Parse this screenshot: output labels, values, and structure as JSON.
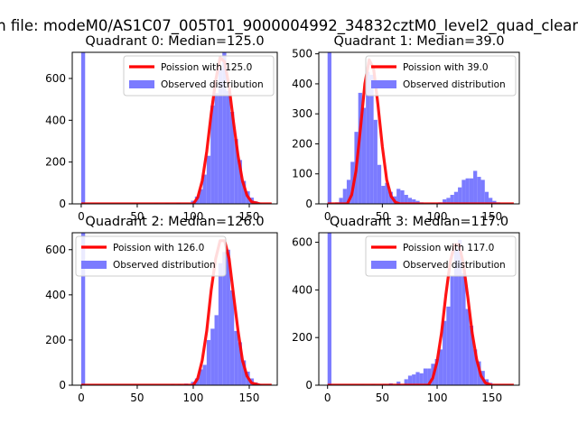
{
  "figure_title": "n file: modeM0/AS1C07_005T01_9000004992_34832cztM0_level2_quad_clean",
  "colors": {
    "hist": "#7b7bff",
    "fit": "#ff0000",
    "background": "#ffffff"
  },
  "chart_data": [
    {
      "type": "bar",
      "title": "Quadrant 0: Median=125.0",
      "xlim": [
        -8,
        175
      ],
      "ylim": [
        0,
        725
      ],
      "xticks": [
        0,
        50,
        100,
        150
      ],
      "yticks": [
        0,
        200,
        400,
        600
      ],
      "legend": [
        "Poission with 125.0",
        "Observed distribution"
      ],
      "legend_position": "upper-right",
      "median": 125,
      "bin_width": 3.5,
      "bins": [
        [
          0,
          725
        ],
        [
          45,
          3
        ],
        [
          65,
          3
        ],
        [
          75,
          4
        ],
        [
          85,
          5
        ],
        [
          98,
          15
        ],
        [
          101.5,
          35
        ],
        [
          105,
          70
        ],
        [
          108.5,
          140
        ],
        [
          112,
          230
        ],
        [
          115.5,
          470
        ],
        [
          119,
          530
        ],
        [
          122.5,
          650
        ],
        [
          126,
          725
        ],
        [
          129.5,
          540
        ],
        [
          133,
          440
        ],
        [
          136.5,
          310
        ],
        [
          140,
          210
        ],
        [
          143.5,
          110
        ],
        [
          147,
          60
        ],
        [
          150.5,
          30
        ],
        [
          154,
          12
        ],
        [
          157.5,
          5
        ],
        [
          161,
          2
        ]
      ],
      "fit": [
        [
          0,
          0
        ],
        [
          100,
          0
        ],
        [
          104,
          30
        ],
        [
          108,
          110
        ],
        [
          112,
          250
        ],
        [
          116,
          430
        ],
        [
          120,
          590
        ],
        [
          124,
          700
        ],
        [
          128,
          680
        ],
        [
          132,
          560
        ],
        [
          136,
          390
        ],
        [
          140,
          230
        ],
        [
          144,
          110
        ],
        [
          148,
          40
        ],
        [
          152,
          10
        ],
        [
          160,
          0
        ],
        [
          170,
          0
        ]
      ]
    },
    {
      "type": "bar",
      "title": "Quadrant 1: Median=39.0",
      "xlim": [
        -8,
        175
      ],
      "ylim": [
        0,
        505
      ],
      "xticks": [
        0,
        50,
        100,
        150
      ],
      "yticks": [
        0,
        100,
        200,
        300,
        400,
        500
      ],
      "legend": [
        "Poission with 39.0",
        "Observed distribution"
      ],
      "legend_position": "upper-right",
      "median": 39,
      "bin_width": 3.5,
      "bins": [
        [
          0,
          505
        ],
        [
          7,
          5
        ],
        [
          10.5,
          20
        ],
        [
          14,
          50
        ],
        [
          17.5,
          80
        ],
        [
          21,
          140
        ],
        [
          24.5,
          240
        ],
        [
          28,
          370
        ],
        [
          31.5,
          320
        ],
        [
          35,
          440
        ],
        [
          38.5,
          430
        ],
        [
          42,
          280
        ],
        [
          45.5,
          130
        ],
        [
          49,
          60
        ],
        [
          52.5,
          70
        ],
        [
          56,
          40
        ],
        [
          59.5,
          25
        ],
        [
          63,
          50
        ],
        [
          66.5,
          45
        ],
        [
          70,
          30
        ],
        [
          73.5,
          20
        ],
        [
          77,
          15
        ],
        [
          80.5,
          10
        ],
        [
          84,
          5
        ],
        [
          94,
          3
        ],
        [
          101,
          5
        ],
        [
          105,
          15
        ],
        [
          108.5,
          20
        ],
        [
          112,
          30
        ],
        [
          115.5,
          40
        ],
        [
          119,
          55
        ],
        [
          122.5,
          80
        ],
        [
          126,
          85
        ],
        [
          129.5,
          85
        ],
        [
          133,
          110
        ],
        [
          136.5,
          90
        ],
        [
          140,
          80
        ],
        [
          143.5,
          40
        ],
        [
          147,
          20
        ],
        [
          150.5,
          10
        ],
        [
          154,
          5
        ]
      ],
      "fit": [
        [
          0,
          0
        ],
        [
          18,
          0
        ],
        [
          22,
          30
        ],
        [
          26,
          110
        ],
        [
          30,
          250
        ],
        [
          34,
          400
        ],
        [
          38,
          480
        ],
        [
          42,
          450
        ],
        [
          46,
          330
        ],
        [
          50,
          190
        ],
        [
          54,
          80
        ],
        [
          58,
          25
        ],
        [
          62,
          5
        ],
        [
          66,
          0
        ],
        [
          170,
          0
        ]
      ]
    },
    {
      "type": "bar",
      "title": "Quadrant 2: Median=126.0",
      "xlim": [
        -8,
        175
      ],
      "ylim": [
        0,
        675
      ],
      "xticks": [
        0,
        50,
        100,
        150
      ],
      "yticks": [
        0,
        200,
        400,
        600
      ],
      "legend": [
        "Poission with 126.0",
        "Observed distribution"
      ],
      "legend_position": "upper-left",
      "median": 126,
      "bin_width": 3.5,
      "bins": [
        [
          0,
          675
        ],
        [
          70,
          2
        ],
        [
          80,
          5
        ],
        [
          86,
          5
        ],
        [
          92,
          7
        ],
        [
          98,
          15
        ],
        [
          101.5,
          30
        ],
        [
          105,
          70
        ],
        [
          108.5,
          90
        ],
        [
          112,
          200
        ],
        [
          115.5,
          250
        ],
        [
          119,
          310
        ],
        [
          122.5,
          540
        ],
        [
          126,
          590
        ],
        [
          129.5,
          600
        ],
        [
          133,
          420
        ],
        [
          136.5,
          240
        ],
        [
          140,
          190
        ],
        [
          143.5,
          110
        ],
        [
          147,
          60
        ],
        [
          150.5,
          30
        ],
        [
          154,
          12
        ],
        [
          157.5,
          5
        ]
      ],
      "fit": [
        [
          0,
          0
        ],
        [
          100,
          0
        ],
        [
          104,
          30
        ],
        [
          108,
          110
        ],
        [
          112,
          240
        ],
        [
          116,
          420
        ],
        [
          120,
          560
        ],
        [
          124,
          640
        ],
        [
          128,
          640
        ],
        [
          132,
          560
        ],
        [
          136,
          400
        ],
        [
          140,
          240
        ],
        [
          144,
          110
        ],
        [
          148,
          40
        ],
        [
          152,
          10
        ],
        [
          160,
          0
        ],
        [
          170,
          0
        ]
      ]
    },
    {
      "type": "bar",
      "title": "Quadrant 3: Median=117.0",
      "xlim": [
        -8,
        175
      ],
      "ylim": [
        0,
        640
      ],
      "xticks": [
        0,
        50,
        100,
        150
      ],
      "yticks": [
        0,
        200,
        400,
        600
      ],
      "legend": [
        "Poission with 117.0",
        "Observed distribution"
      ],
      "legend_position": "upper-right",
      "median": 117,
      "bin_width": 3.5,
      "bins": [
        [
          0,
          640
        ],
        [
          30,
          3
        ],
        [
          40,
          4
        ],
        [
          50,
          5
        ],
        [
          56,
          8
        ],
        [
          63,
          15
        ],
        [
          70,
          25
        ],
        [
          73.5,
          40
        ],
        [
          77,
          45
        ],
        [
          80.5,
          55
        ],
        [
          84,
          50
        ],
        [
          87.5,
          70
        ],
        [
          91,
          70
        ],
        [
          94.5,
          90
        ],
        [
          98,
          110
        ],
        [
          101.5,
          150
        ],
        [
          105,
          270
        ],
        [
          108.5,
          330
        ],
        [
          112,
          460
        ],
        [
          115.5,
          570
        ],
        [
          119,
          610
        ],
        [
          122.5,
          470
        ],
        [
          126,
          320
        ],
        [
          129.5,
          250
        ],
        [
          133,
          150
        ],
        [
          136.5,
          100
        ],
        [
          140,
          60
        ],
        [
          143.5,
          25
        ],
        [
          147,
          10
        ]
      ],
      "fit": [
        [
          0,
          0
        ],
        [
          92,
          0
        ],
        [
          96,
          30
        ],
        [
          100,
          100
        ],
        [
          104,
          220
        ],
        [
          108,
          380
        ],
        [
          112,
          520
        ],
        [
          116,
          590
        ],
        [
          120,
          590
        ],
        [
          124,
          510
        ],
        [
          128,
          370
        ],
        [
          132,
          220
        ],
        [
          136,
          110
        ],
        [
          140,
          40
        ],
        [
          144,
          10
        ],
        [
          150,
          0
        ],
        [
          170,
          0
        ]
      ]
    }
  ]
}
